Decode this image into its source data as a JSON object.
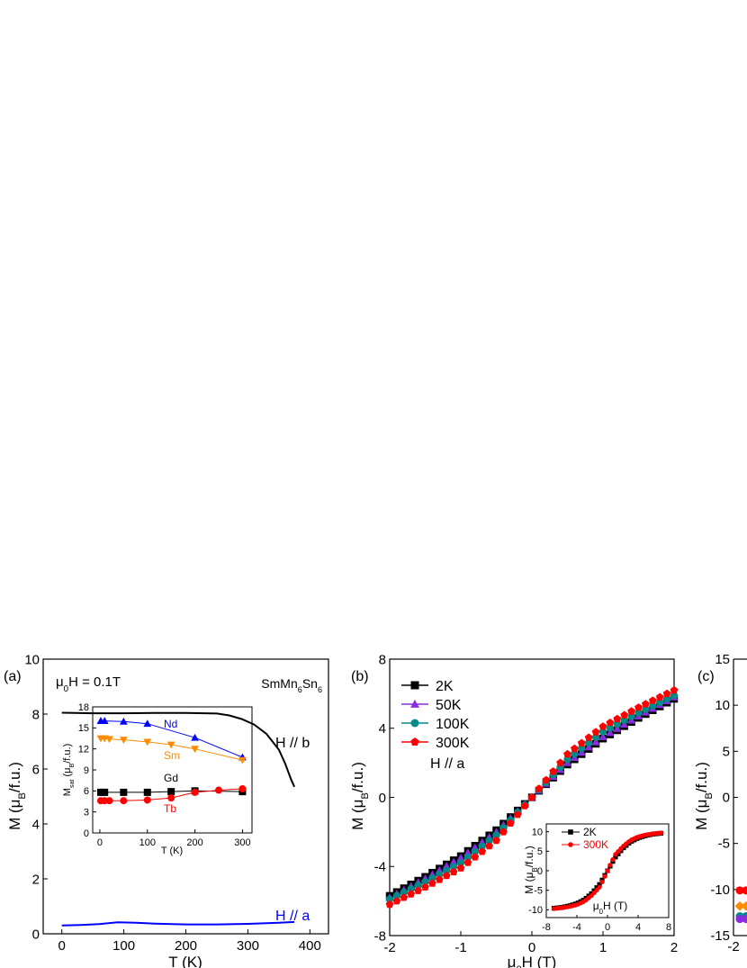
{
  "chart_data": [
    {
      "panel": "(a)",
      "type": "line",
      "xlabel": "T (K)",
      "ylabel_parts": [
        "M (",
        "μ",
        "B",
        "/f.u.)"
      ],
      "xlim": [
        -30,
        430
      ],
      "ylim": [
        0,
        10
      ],
      "xticks": [
        0,
        100,
        200,
        300,
        400
      ],
      "yticks": [
        0,
        2,
        4,
        6,
        8,
        10
      ],
      "annotations": {
        "field_parts": [
          "μ",
          "0",
          "H = 0.1T"
        ],
        "compound_parts": [
          "SmMn",
          "6",
          "Sn",
          "6"
        ],
        "hb": "H // b",
        "ha": "H // a"
      },
      "series": [
        {
          "name": "H // b",
          "color": "#000000",
          "x": [
            0,
            50,
            100,
            150,
            200,
            250,
            270,
            290,
            310,
            330,
            350,
            360,
            370,
            375
          ],
          "y": [
            8.05,
            8.03,
            8.03,
            8.04,
            8.04,
            8.02,
            7.95,
            7.82,
            7.62,
            7.28,
            6.7,
            6.2,
            5.6,
            5.35
          ]
        },
        {
          "name": "H // a",
          "color": "#0000ff",
          "x": [
            0,
            30,
            60,
            90,
            120,
            150,
            200,
            250,
            300,
            350,
            375
          ],
          "y": [
            0.3,
            0.32,
            0.35,
            0.42,
            0.4,
            0.37,
            0.34,
            0.34,
            0.36,
            0.4,
            0.43
          ]
        }
      ],
      "inset": {
        "xlabel": "T (K)",
        "ylabel_parts": [
          "M",
          "sat",
          " (μ",
          "B",
          "/f.u.)"
        ],
        "xlim": [
          -15,
          320
        ],
        "ylim": [
          0,
          18
        ],
        "xticks": [
          0,
          100,
          200,
          300
        ],
        "yticks": [
          0,
          3,
          6,
          9,
          12,
          15,
          18
        ],
        "series": [
          {
            "name": "Nd",
            "color": "#0000ff",
            "marker": "triangle-up",
            "x": [
              2,
              10,
              50,
              100,
              200,
              300
            ],
            "y": [
              16.0,
              16.0,
              15.9,
              15.6,
              13.6,
              10.8
            ]
          },
          {
            "name": "Sm",
            "color": "#ff8c00",
            "marker": "triangle-down",
            "x": [
              2,
              10,
              20,
              50,
              100,
              150,
              200,
              300
            ],
            "y": [
              13.5,
              13.5,
              13.4,
              13.3,
              13.0,
              12.6,
              12.0,
              10.4
            ]
          },
          {
            "name": "Gd",
            "color": "#000000",
            "marker": "square",
            "x": [
              2,
              10,
              50,
              100,
              150,
              200,
              300
            ],
            "y": [
              5.8,
              5.8,
              5.8,
              5.8,
              5.9,
              6.0,
              5.9
            ]
          },
          {
            "name": "Tb",
            "color": "#ff0000",
            "marker": "circle",
            "x": [
              2,
              10,
              20,
              50,
              100,
              150,
              200,
              250,
              300
            ],
            "y": [
              4.6,
              4.6,
              4.6,
              4.6,
              4.7,
              5.0,
              5.8,
              6.1,
              6.3
            ]
          }
        ]
      }
    },
    {
      "panel": "(b)",
      "type": "scatter",
      "xlabel_parts": [
        "μ",
        "0",
        "H (T)"
      ],
      "ylabel_parts": [
        "M (",
        "μ",
        "B",
        "/f.u.)"
      ],
      "xlim": [
        -2,
        2
      ],
      "ylim": [
        -8,
        8
      ],
      "xticks": [
        -2,
        -1,
        0,
        1,
        2
      ],
      "yticks": [
        -8,
        -4,
        0,
        4,
        8
      ],
      "annotation": "H // a",
      "series": [
        {
          "name": "2K",
          "color": "#000000",
          "marker": "square",
          "x": [
            -2,
            -1.5,
            -1,
            -0.5,
            0,
            0.5,
            1,
            1.5,
            2
          ],
          "y": [
            -5.7,
            -4.6,
            -3.4,
            -1.9,
            0,
            1.9,
            3.4,
            4.6,
            5.7
          ]
        },
        {
          "name": "50K",
          "color": "#8a2be2",
          "marker": "triangle-up",
          "x": [
            -2,
            -1.5,
            -1,
            -0.5,
            0,
            0.5,
            1,
            1.5,
            2
          ],
          "y": [
            -5.8,
            -4.7,
            -3.5,
            -2.0,
            0,
            2.0,
            3.5,
            4.7,
            5.8
          ]
        },
        {
          "name": "100K",
          "color": "#008b8b",
          "marker": "circle",
          "x": [
            -2,
            -1.5,
            -1,
            -0.5,
            0,
            0.5,
            1,
            1.5,
            2
          ],
          "y": [
            -5.9,
            -4.9,
            -3.8,
            -2.2,
            0,
            2.2,
            3.8,
            4.9,
            5.9
          ]
        },
        {
          "name": "300K",
          "color": "#ff0000",
          "marker": "pentagon",
          "x": [
            -2,
            -1.5,
            -1,
            -0.5,
            0,
            0.5,
            1,
            1.5,
            2
          ],
          "y": [
            -6.2,
            -5.2,
            -4.1,
            -2.5,
            0,
            2.5,
            4.1,
            5.2,
            6.2
          ]
        }
      ],
      "inset": {
        "xlabel_parts": [
          "μ",
          "0",
          "H (T)"
        ],
        "ylabel_parts": [
          "M (",
          "μ",
          "B",
          "/f.u.)"
        ],
        "xlim": [
          -8,
          8
        ],
        "ylim": [
          -12,
          12
        ],
        "xticks": [
          -8,
          -4,
          0,
          4,
          8
        ],
        "yticks": [
          -10,
          -5,
          0,
          5,
          10
        ],
        "series": [
          {
            "name": "2K",
            "color": "#000000",
            "marker": "square",
            "x": [
              -7,
              -6,
              -5,
              -4,
              -3,
              -2,
              -1,
              0,
              1,
              2,
              3,
              4,
              5,
              6,
              7
            ],
            "y": [
              -9.6,
              -9.4,
              -9.0,
              -8.4,
              -7.4,
              -5.7,
              -3.4,
              0,
              3.4,
              5.7,
              7.4,
              8.4,
              9.0,
              9.4,
              9.6
            ]
          },
          {
            "name": "300K",
            "color": "#ff0000",
            "marker": "circle",
            "x": [
              -7,
              -6,
              -5,
              -4,
              -3,
              -2,
              -1,
              0,
              1,
              2,
              3,
              4,
              5,
              6,
              7
            ],
            "y": [
              -9.7,
              -9.5,
              -9.2,
              -8.7,
              -7.8,
              -6.2,
              -4.1,
              0,
              4.1,
              6.2,
              7.8,
              8.7,
              9.2,
              9.5,
              9.7
            ]
          }
        ]
      }
    },
    {
      "panel": "(c)",
      "type": "scatter",
      "xlabel_parts": [
        "-2"
      ],
      "ylabel_parts": [
        "M (",
        "μ",
        "B",
        "/f.u.)"
      ],
      "ylim": [
        -15,
        15
      ],
      "yticks": [
        -15,
        -10,
        -5,
        0,
        5,
        10,
        15
      ],
      "visible_x_tick": "-2",
      "series": [
        {
          "color": "#ff0000",
          "marker": "circle",
          "y": -10.1
        },
        {
          "color": "#ff8c00",
          "marker": "diamond",
          "y": -11.8
        },
        {
          "color": "#008b8b",
          "marker": "circle",
          "y": -12.9
        },
        {
          "color": "#8a2be2",
          "marker": "circle",
          "y": -13.2
        }
      ]
    }
  ]
}
